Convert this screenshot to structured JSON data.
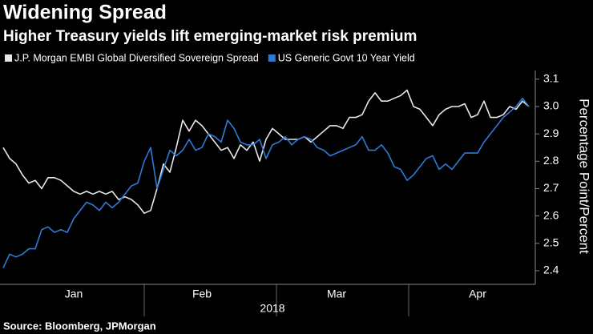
{
  "chart_data": {
    "type": "line",
    "title": "Widening Spread",
    "subtitle": "Higher Treasury yields lift emerging-market risk premium",
    "source": "Source: Bloomberg, JPMorgan",
    "xlabel": "2018",
    "ylabel": "Percentage Point/Percent",
    "legend": "top-left",
    "grid": false,
    "ylim": [
      2.35,
      3.12
    ],
    "yticks": [
      2.4,
      2.5,
      2.6,
      2.7,
      2.8,
      2.9,
      {
        "value": 3.0,
        "label": "3.0"
      },
      3.1
    ],
    "categories": [
      null,
      null,
      null,
      null,
      null,
      null,
      null,
      null,
      null,
      null,
      null,
      "Jan",
      null,
      null,
      null,
      null,
      null,
      null,
      null,
      null,
      null,
      null,
      null,
      null,
      null,
      null,
      null,
      null,
      null,
      null,
      null,
      "Feb",
      null,
      null,
      null,
      null,
      null,
      null,
      null,
      null,
      null,
      null,
      null,
      null,
      null,
      null,
      null,
      null,
      null,
      null,
      null,
      null,
      "Mar",
      null,
      null,
      null,
      null,
      null,
      null,
      null,
      null,
      null,
      null,
      null,
      null,
      null,
      null,
      null,
      null,
      null,
      null,
      null,
      null,
      null,
      "Apr",
      null,
      null,
      null,
      null,
      null,
      null,
      null,
      null
    ],
    "series": [
      {
        "name": "J.P. Morgan EMBI Global Diversified Sovereign Spread",
        "color": "#e8e8e8",
        "values": [
          2.85,
          2.81,
          2.79,
          2.75,
          2.72,
          2.73,
          2.7,
          2.74,
          2.74,
          2.73,
          2.71,
          2.69,
          2.68,
          2.69,
          2.68,
          2.69,
          2.68,
          2.69,
          2.66,
          2.67,
          2.66,
          2.64,
          2.61,
          2.62,
          2.7,
          2.79,
          2.76,
          2.85,
          2.95,
          2.91,
          2.95,
          2.93,
          2.9,
          2.87,
          2.84,
          2.85,
          2.81,
          2.86,
          2.84,
          2.87,
          2.8,
          2.88,
          2.92,
          2.9,
          2.88,
          2.88,
          2.88,
          2.89,
          2.87,
          2.89,
          2.91,
          2.93,
          2.93,
          2.92,
          2.96,
          2.96,
          2.97,
          3.02,
          3.05,
          3.02,
          3.02,
          3.03,
          3.04,
          3.06,
          3.0,
          2.99,
          2.96,
          2.93,
          2.97,
          2.99,
          3.0,
          3.0,
          3.01,
          2.96,
          2.97,
          3.02,
          2.96,
          2.96,
          2.97,
          3.0,
          2.99,
          3.02,
          3.0
        ]
      },
      {
        "name": "US Generic Govt 10 Year Yield",
        "color": "#2f7ad6",
        "values": [
          2.41,
          2.46,
          2.45,
          2.46,
          2.48,
          2.48,
          2.55,
          2.56,
          2.54,
          2.55,
          2.54,
          2.59,
          2.62,
          2.65,
          2.64,
          2.62,
          2.65,
          2.63,
          2.65,
          2.68,
          2.71,
          2.72,
          2.8,
          2.85,
          2.7,
          2.77,
          2.84,
          2.82,
          2.84,
          2.88,
          2.84,
          2.85,
          2.9,
          2.89,
          2.87,
          2.95,
          2.92,
          2.87,
          2.86,
          2.86,
          2.88,
          2.81,
          2.86,
          2.87,
          2.89,
          2.86,
          2.88,
          2.89,
          2.88,
          2.85,
          2.84,
          2.82,
          2.83,
          2.84,
          2.85,
          2.86,
          2.89,
          2.84,
          2.84,
          2.86,
          2.83,
          2.78,
          2.77,
          2.73,
          2.75,
          2.78,
          2.81,
          2.82,
          2.77,
          2.79,
          2.77,
          2.8,
          2.83,
          2.83,
          2.83,
          2.87,
          2.9,
          2.93,
          2.96,
          2.98,
          3.0,
          3.03,
          3.0
        ]
      }
    ]
  }
}
